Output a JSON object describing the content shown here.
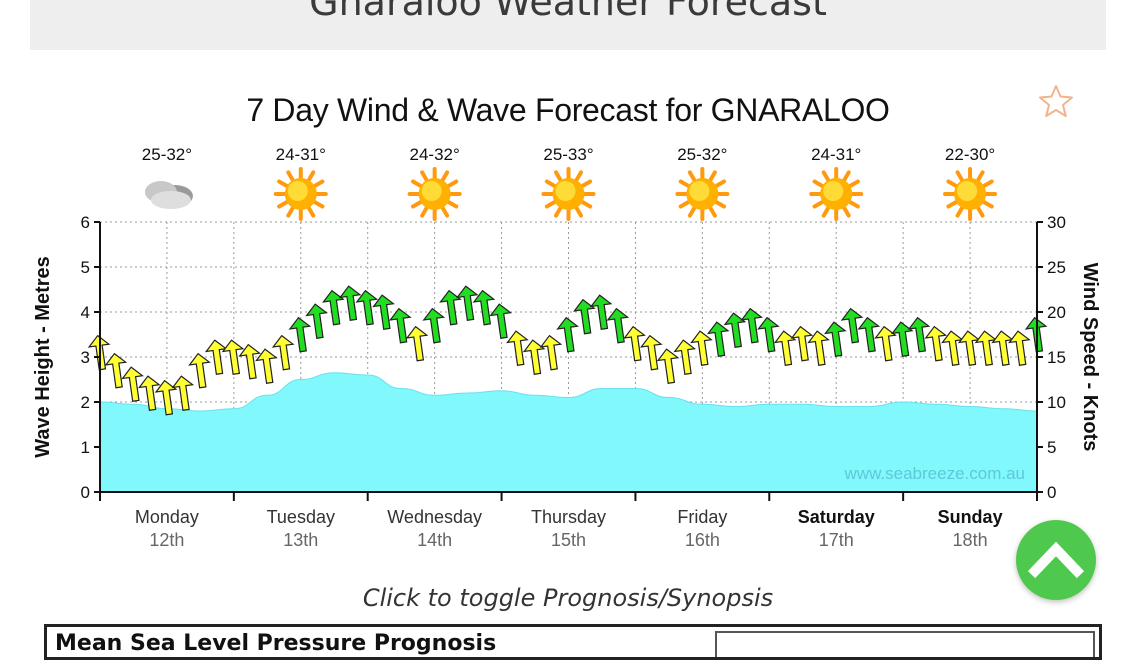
{
  "page": {
    "title": "Gnaraloo Weather Forecast"
  },
  "chart_data": {
    "type": "line",
    "title": "7 Day Wind & Wave Forecast for GNARALOO",
    "ylabel": "Wave Height - Metres",
    "y2label": "Wind Speed - Knots",
    "ylim": [
      0,
      6
    ],
    "y2lim": [
      0,
      30
    ],
    "y_ticks": [
      "0",
      "1",
      "2",
      "3",
      "4",
      "5",
      "6"
    ],
    "y2_ticks": [
      "0",
      "5",
      "10",
      "15",
      "20",
      "25",
      "30"
    ],
    "watermark": "www.seabreeze.com.au",
    "days": [
      {
        "day": "Monday",
        "date": "12th",
        "temp": "25-32°",
        "icon": "cloud-icon",
        "bold": false
      },
      {
        "day": "Tuesday",
        "date": "13th",
        "temp": "24-31°",
        "icon": "sun-icon",
        "bold": false
      },
      {
        "day": "Wednesday",
        "date": "14th",
        "temp": "24-32°",
        "icon": "sun-icon",
        "bold": false
      },
      {
        "day": "Thursday",
        "date": "15th",
        "temp": "25-33°",
        "icon": "sun-icon",
        "bold": false
      },
      {
        "day": "Friday",
        "date": "16th",
        "temp": "25-32°",
        "icon": "sun-icon",
        "bold": false
      },
      {
        "day": "Saturday",
        "date": "17th",
        "temp": "24-31°",
        "icon": "sun-icon",
        "bold": true
      },
      {
        "day": "Sunday",
        "date": "18th",
        "temp": "22-30°",
        "icon": "sun-icon",
        "bold": true
      }
    ],
    "wave_height": {
      "name": "Wave Height",
      "color": "#80f8fc",
      "x": [
        0,
        0.25,
        0.5,
        0.75,
        1,
        1.25,
        1.5,
        1.75,
        2,
        2.25,
        2.5,
        2.75,
        3,
        3.25,
        3.5,
        3.75,
        4,
        4.25,
        4.5,
        4.75,
        5,
        5.25,
        5.5,
        5.75,
        6,
        6.25,
        6.5,
        6.75,
        7
      ],
      "values": [
        2.0,
        1.95,
        1.85,
        1.8,
        1.85,
        2.15,
        2.5,
        2.65,
        2.6,
        2.3,
        2.15,
        2.2,
        2.25,
        2.15,
        2.1,
        2.3,
        2.3,
        2.1,
        1.95,
        1.9,
        1.95,
        1.95,
        1.9,
        1.9,
        2.0,
        1.95,
        1.9,
        1.85,
        1.8
      ]
    },
    "wind_speed": {
      "name": "Wind Speed",
      "unit": "Knots",
      "strong_color": "#22dd22",
      "light_color": "#ffff33",
      "strong_threshold": 17,
      "x": [
        0,
        0.125,
        0.25,
        0.375,
        0.5,
        0.625,
        0.75,
        0.875,
        1,
        1.125,
        1.25,
        1.375,
        1.5,
        1.625,
        1.75,
        1.875,
        2,
        2.125,
        2.25,
        2.375,
        2.5,
        2.625,
        2.75,
        2.875,
        3,
        3.125,
        3.25,
        3.375,
        3.5,
        3.625,
        3.75,
        3.875,
        4,
        4.125,
        4.25,
        4.375,
        4.5,
        4.625,
        4.75,
        4.875,
        5,
        5.125,
        5.25,
        5.375,
        5.5,
        5.625,
        5.75,
        5.875,
        6,
        6.125,
        6.25,
        6.375,
        6.5,
        6.625,
        6.75,
        6.875,
        7
      ],
      "values": [
        15.5,
        13.5,
        12,
        11,
        10.5,
        11,
        13.5,
        15,
        15,
        14.5,
        14,
        15.5,
        17.5,
        19,
        20.5,
        21,
        20.5,
        20,
        18.5,
        16.5,
        18.5,
        20.5,
        21,
        20.5,
        19,
        16,
        15,
        15.5,
        17.5,
        19.5,
        20,
        18.5,
        16.5,
        15.5,
        14,
        15,
        16,
        17,
        18,
        18.5,
        17.5,
        16,
        16.5,
        16,
        17,
        18.5,
        17.5,
        16.5,
        17,
        17.5,
        16.5,
        16,
        16,
        16,
        16,
        16,
        17.5
      ]
    }
  },
  "caption": "Click to toggle Prognosis/Synopsis",
  "bottom_panel": {
    "title": "Mean Sea Level Pressure Prognosis"
  }
}
